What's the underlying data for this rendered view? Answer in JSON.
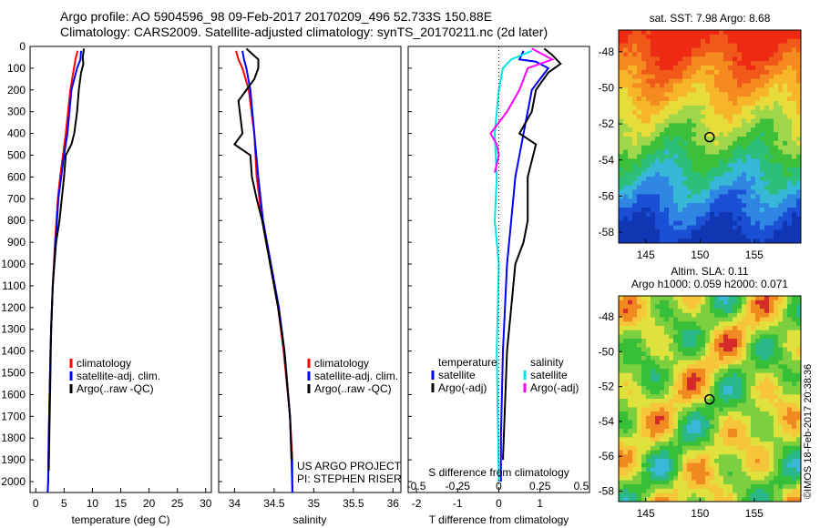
{
  "header": {
    "line1": "Argo profile: AO 5904596_98 09-Feb-2017 20170209_496 52.733S 150.88E",
    "line2": "Climatology: CARS2009. Satellite-adjusted climatology: synTS_20170211.nc (2d later)"
  },
  "credits": {
    "project": "US ARGO PROJECT",
    "pi": "PI: STEPHEN RISER",
    "stamp": "©IMOS 18-Feb-2017 20:38:36"
  },
  "colors": {
    "climatology": "#ff0000",
    "satellite": "#0000ff",
    "argo": "#000000",
    "sat_salinity": "#00e5e5",
    "argo_salinity": "#ff00ff"
  },
  "chart_data": [
    {
      "id": "temperature",
      "type": "line",
      "xlabel": "temperature (deg C)",
      "ylabel": "",
      "xlim": [
        -1,
        31
      ],
      "ylim": [
        2050,
        0
      ],
      "xticks": [
        0,
        5,
        10,
        15,
        20,
        25,
        30
      ],
      "yticks": [
        0,
        100,
        200,
        300,
        400,
        500,
        600,
        700,
        800,
        900,
        1000,
        1100,
        1200,
        1300,
        1400,
        1500,
        1600,
        1700,
        1800,
        1900,
        2000
      ],
      "legend": [
        "climatology",
        "satellite-adj. clim.",
        "Argo(..raw -QC)"
      ],
      "series": [
        {
          "name": "climatology",
          "color": "#ff0000",
          "x": [
            7.4,
            7.0,
            6.1,
            5.3,
            4.8,
            4.3,
            3.9,
            3.4,
            3.0,
            2.6,
            2.3,
            2.2,
            2.1
          ],
          "y": [
            20,
            60,
            200,
            400,
            500,
            600,
            700,
            900,
            1100,
            1400,
            1800,
            2000,
            2050
          ]
        },
        {
          "name": "satellite-adj. clim.",
          "color": "#0000ff",
          "x": [
            8.0,
            7.9,
            7.3,
            6.3,
            5.6,
            5.0,
            4.5,
            4.0,
            3.5,
            3.0,
            2.6,
            2.3,
            2.2,
            2.1
          ],
          "y": [
            20,
            60,
            100,
            200,
            400,
            500,
            600,
            700,
            900,
            1100,
            1400,
            1800,
            2000,
            2050
          ]
        },
        {
          "name": "Argo(..raw -QC)",
          "color": "#000000",
          "x": [
            8.5,
            8.3,
            8.4,
            8.0,
            7.6,
            7.3,
            6.8,
            6.3,
            5.3,
            5.0,
            4.6,
            4.2,
            3.6,
            3.3,
            3.0,
            2.7,
            2.6,
            2.4,
            2.3
          ],
          "y": [
            10,
            50,
            80,
            120,
            200,
            300,
            400,
            450,
            500,
            600,
            700,
            800,
            900,
            1000,
            1100,
            1300,
            1500,
            1800,
            1950
          ]
        }
      ]
    },
    {
      "id": "salinity",
      "type": "line",
      "xlabel": "salinity",
      "ylabel": "",
      "xlim": [
        33.8,
        36.1
      ],
      "ylim": [
        2050,
        0
      ],
      "xticks": [
        34,
        34.5,
        35,
        35.5,
        36
      ],
      "legend": [
        "climatology",
        "satellite-adj. clim.",
        "Argo(..raw -QC)"
      ],
      "series": [
        {
          "name": "climatology",
          "color": "#ff0000",
          "x": [
            34.02,
            34.05,
            34.1,
            34.18,
            34.25,
            34.28,
            34.35,
            34.45,
            34.55,
            34.62,
            34.7,
            34.73,
            34.73
          ],
          "y": [
            20,
            60,
            100,
            200,
            400,
            600,
            800,
            1000,
            1200,
            1400,
            1700,
            1900,
            2050
          ]
        },
        {
          "name": "satellite-adj. clim.",
          "color": "#0000ff",
          "x": [
            34.1,
            34.12,
            34.15,
            34.2,
            34.25,
            34.3,
            34.36,
            34.46,
            34.56,
            34.63,
            34.7,
            34.72,
            34.73
          ],
          "y": [
            20,
            60,
            100,
            200,
            400,
            600,
            800,
            1000,
            1200,
            1400,
            1700,
            1900,
            2050
          ]
        },
        {
          "name": "Argo(..raw -QC)",
          "color": "#000000",
          "x": [
            34.15,
            34.3,
            34.3,
            34.25,
            34.05,
            34.1,
            34.0,
            34.2,
            34.22,
            34.28,
            34.35,
            34.45,
            34.55,
            34.63,
            34.7,
            34.72
          ],
          "y": [
            10,
            60,
            100,
            150,
            250,
            400,
            450,
            500,
            600,
            700,
            800,
            1000,
            1200,
            1400,
            1700,
            1900
          ]
        }
      ]
    },
    {
      "id": "difference",
      "type": "line",
      "xlabel": "T difference from climatology",
      "xlabel_top": "S difference from climatology",
      "xlim": [
        -2.2,
        2.2
      ],
      "ylim": [
        2050,
        0
      ],
      "xticks": [
        -2,
        -1,
        0,
        1
      ],
      "xticklabels": [
        "-2",
        "-1",
        "0",
        "1"
      ],
      "xticks_S": [
        -0.5,
        -0.25,
        0,
        0.25,
        0.5
      ],
      "legend_temperature": {
        "title": "temperature",
        "items": [
          "satellite",
          "Argo(-adj)"
        ]
      },
      "legend_salinity": {
        "title": "salinity",
        "items": [
          "satellite",
          "Argo(-adj)"
        ]
      },
      "series": [
        {
          "name": "temperature satellite",
          "color": "#0000ff",
          "x": [
            0.6,
            0.5,
            0.9,
            1.2,
            0.8,
            0.7,
            0.6,
            0.5,
            0.4,
            0.3,
            0.2,
            0.1,
            0.05,
            0.05
          ],
          "y": [
            20,
            60,
            70,
            100,
            200,
            300,
            400,
            500,
            600,
            800,
            1000,
            1400,
            1800,
            2000
          ]
        },
        {
          "name": "temperature Argo(-adj)",
          "color": "#000000",
          "x": [
            1.1,
            1.3,
            1.5,
            1.2,
            0.9,
            0.8,
            0.5,
            0.9,
            0.7,
            0.7,
            0.6,
            0.4,
            0.3,
            0.2,
            0.1
          ],
          "y": [
            10,
            40,
            80,
            120,
            200,
            300,
            400,
            450,
            600,
            800,
            900,
            1000,
            1200,
            1400,
            1900
          ]
        },
        {
          "name": "salinity satellite",
          "color": "#00e5e5",
          "x": [
            0.8,
            0.3,
            0.1,
            0.0,
            -0.1,
            -0.05,
            -0.1,
            0.0,
            -0.05,
            0.0
          ],
          "y": [
            20,
            60,
            100,
            200,
            400,
            600,
            800,
            1000,
            1400,
            2000
          ]
        },
        {
          "name": "salinity Argo(-adj)",
          "color": "#ff00ff",
          "x": [
            0.8,
            1.3,
            0.7,
            0.5,
            0.2,
            -0.2,
            -0.05,
            0.0,
            -0.1
          ],
          "y": [
            10,
            60,
            100,
            200,
            300,
            400,
            450,
            500,
            580
          ]
        }
      ]
    },
    {
      "id": "sst-map",
      "type": "heatmap",
      "title": "sat. SST: 7.98  Argo: 8.68",
      "xlim": [
        142.5,
        159.3
      ],
      "ylim": [
        -58.6,
        -46.8
      ],
      "xticks": [
        145,
        150,
        155
      ],
      "yticks": [
        -48,
        -50,
        -52,
        -54,
        -56,
        -58
      ],
      "marker": {
        "lon": 150.88,
        "lat": -52.733
      }
    },
    {
      "id": "sla-map",
      "type": "heatmap",
      "title_line1": "Altim. SLA: 0.11",
      "title_line2": "Argo h1000: 0.059 h2000: 0.071",
      "xlim": [
        142.5,
        159.3
      ],
      "ylim": [
        -58.6,
        -46.8
      ],
      "xticks": [
        145,
        150,
        155
      ],
      "yticks": [
        -48,
        -50,
        -52,
        -54,
        -56,
        -58
      ],
      "marker": {
        "lon": 150.88,
        "lat": -52.733
      }
    }
  ]
}
